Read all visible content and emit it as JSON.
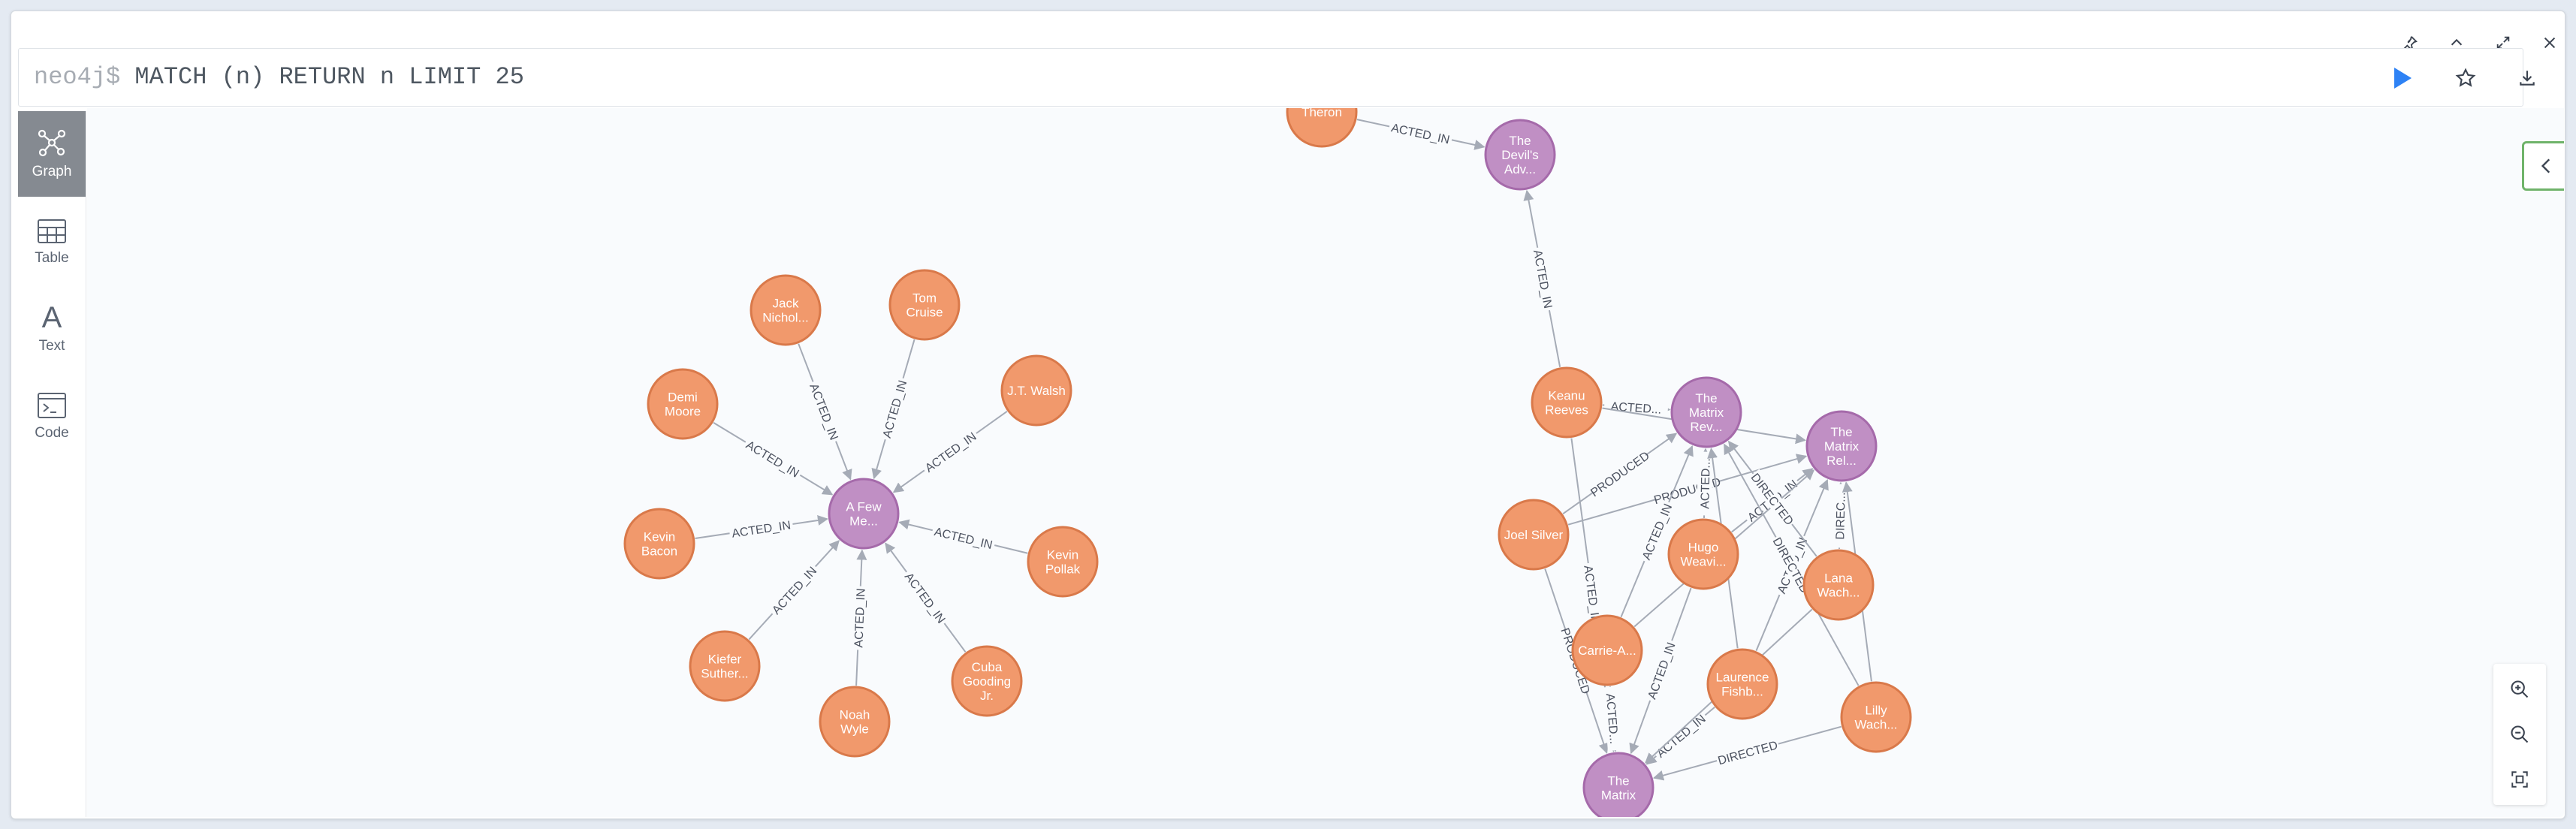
{
  "query": {
    "prompt": "neo4j$",
    "text": "MATCH (n) RETURN n LIMIT 25"
  },
  "frame_controls": [
    "pin-icon",
    "collapse-up-icon",
    "fullscreen-icon",
    "close-icon"
  ],
  "bar_actions": [
    "run-icon",
    "favorite-star-icon",
    "download-icon"
  ],
  "views": [
    {
      "label": "Graph",
      "icon": "graph-icon",
      "active": true
    },
    {
      "label": "Table",
      "icon": "table-icon",
      "active": false
    },
    {
      "label": "Text",
      "icon": "text-icon",
      "active": false
    },
    {
      "label": "Code",
      "icon": "code-icon",
      "active": false
    }
  ],
  "colors": {
    "person_fill": "#f1996c",
    "person_stroke": "#d9794a",
    "movie_fill": "#c08fc4",
    "movie_stroke": "#a56aaa",
    "edge": "#a5abb6",
    "accent_run": "#2e82f5",
    "collapse_border": "#6fb36a"
  },
  "nodes": [
    {
      "id": "n1",
      "label": [
        "A Few",
        "Me..."
      ],
      "type": "movie"
    },
    {
      "id": "n2",
      "label": [
        "Jack",
        "Nichol..."
      ],
      "type": "person"
    },
    {
      "id": "n3",
      "label": [
        "Tom",
        "Cruise"
      ],
      "type": "person"
    },
    {
      "id": "n4",
      "label": [
        "Demi",
        "Moore"
      ],
      "type": "person"
    },
    {
      "id": "n5",
      "label": [
        "J.T. Walsh"
      ],
      "type": "person"
    },
    {
      "id": "n6",
      "label": [
        "Kevin",
        "Bacon"
      ],
      "type": "person"
    },
    {
      "id": "n7",
      "label": [
        "Kevin",
        "Pollak"
      ],
      "type": "person"
    },
    {
      "id": "n8",
      "label": [
        "Kiefer",
        "Suther..."
      ],
      "type": "person"
    },
    {
      "id": "n9",
      "label": [
        "Noah",
        "Wyle"
      ],
      "type": "person"
    },
    {
      "id": "n10",
      "label": [
        "Cuba",
        "Gooding",
        "Jr."
      ],
      "type": "person"
    },
    {
      "id": "n11",
      "label": [
        "Theron"
      ],
      "type": "person"
    },
    {
      "id": "n12",
      "label": [
        "The",
        "Devil's",
        "Adv..."
      ],
      "type": "movie"
    },
    {
      "id": "n13",
      "label": [
        "Keanu",
        "Reeves"
      ],
      "type": "person"
    },
    {
      "id": "n14",
      "label": [
        "The",
        "Matrix",
        "Rev..."
      ],
      "type": "movie"
    },
    {
      "id": "n15",
      "label": [
        "The",
        "Matrix",
        "Rel..."
      ],
      "type": "movie"
    },
    {
      "id": "n16",
      "label": [
        "Joel Silver"
      ],
      "type": "person"
    },
    {
      "id": "n17",
      "label": [
        "Hugo",
        "Weavi..."
      ],
      "type": "person"
    },
    {
      "id": "n18",
      "label": [
        "Lana",
        "Wach..."
      ],
      "type": "person"
    },
    {
      "id": "n19",
      "label": [
        "Carrie-A..."
      ],
      "type": "person"
    },
    {
      "id": "n20",
      "label": [
        "Laurence",
        "Fishb..."
      ],
      "type": "person"
    },
    {
      "id": "n21",
      "label": [
        "Lilly",
        "Wach..."
      ],
      "type": "person"
    },
    {
      "id": "n22",
      "label": [
        "The",
        "Matrix"
      ],
      "type": "movie"
    }
  ],
  "edges": [
    {
      "from": "n2",
      "to": "n1",
      "label": "ACTED_IN"
    },
    {
      "from": "n3",
      "to": "n1",
      "label": "ACTED_IN"
    },
    {
      "from": "n4",
      "to": "n1",
      "label": "ACTED_IN"
    },
    {
      "from": "n5",
      "to": "n1",
      "label": "ACTED_IN"
    },
    {
      "from": "n6",
      "to": "n1",
      "label": "ACTED_IN"
    },
    {
      "from": "n7",
      "to": "n1",
      "label": "ACTED_IN"
    },
    {
      "from": "n8",
      "to": "n1",
      "label": "ACTED_IN"
    },
    {
      "from": "n9",
      "to": "n1",
      "label": "ACTED_IN"
    },
    {
      "from": "n10",
      "to": "n1",
      "label": "ACTED_IN"
    },
    {
      "from": "n11",
      "to": "n12",
      "label": "ACTED_IN"
    },
    {
      "from": "n13",
      "to": "n12",
      "label": "ACTED_IN"
    },
    {
      "from": "n13",
      "to": "n14",
      "label": "ACTED..."
    },
    {
      "from": "n13",
      "to": "n15",
      "label": ""
    },
    {
      "from": "n13",
      "to": "n22",
      "label": "ACTED_IN"
    },
    {
      "from": "n16",
      "to": "n14",
      "label": "PRODUCED"
    },
    {
      "from": "n16",
      "to": "n15",
      "label": "PRODUCED"
    },
    {
      "from": "n16",
      "to": "n22",
      "label": "PRODUCED"
    },
    {
      "from": "n17",
      "to": "n14",
      "label": "ACTED..."
    },
    {
      "from": "n17",
      "to": "n15",
      "label": "ACTED_IN"
    },
    {
      "from": "n17",
      "to": "n22",
      "label": "ACTED_IN"
    },
    {
      "from": "n19",
      "to": "n14",
      "label": "ACTED_IN"
    },
    {
      "from": "n19",
      "to": "n15",
      "label": ""
    },
    {
      "from": "n19",
      "to": "n22",
      "label": "ACTED..."
    },
    {
      "from": "n20",
      "to": "n14",
      "label": ""
    },
    {
      "from": "n20",
      "to": "n15",
      "label": "ACTED_IN"
    },
    {
      "from": "n20",
      "to": "n22",
      "label": "ACTED_IN"
    },
    {
      "from": "n18",
      "to": "n14",
      "label": "DIRECTED"
    },
    {
      "from": "n18",
      "to": "n15",
      "label": "DIREC..."
    },
    {
      "from": "n18",
      "to": "n22",
      "label": ""
    },
    {
      "from": "n21",
      "to": "n14",
      "label": "DIRECTED"
    },
    {
      "from": "n21",
      "to": "n15",
      "label": ""
    },
    {
      "from": "n21",
      "to": "n22",
      "label": "DIRECTED"
    }
  ],
  "zoom_controls": [
    "zoom-in-icon",
    "zoom-out-icon",
    "fit-to-screen-icon"
  ],
  "panel_toggle": "chevron-left-icon"
}
